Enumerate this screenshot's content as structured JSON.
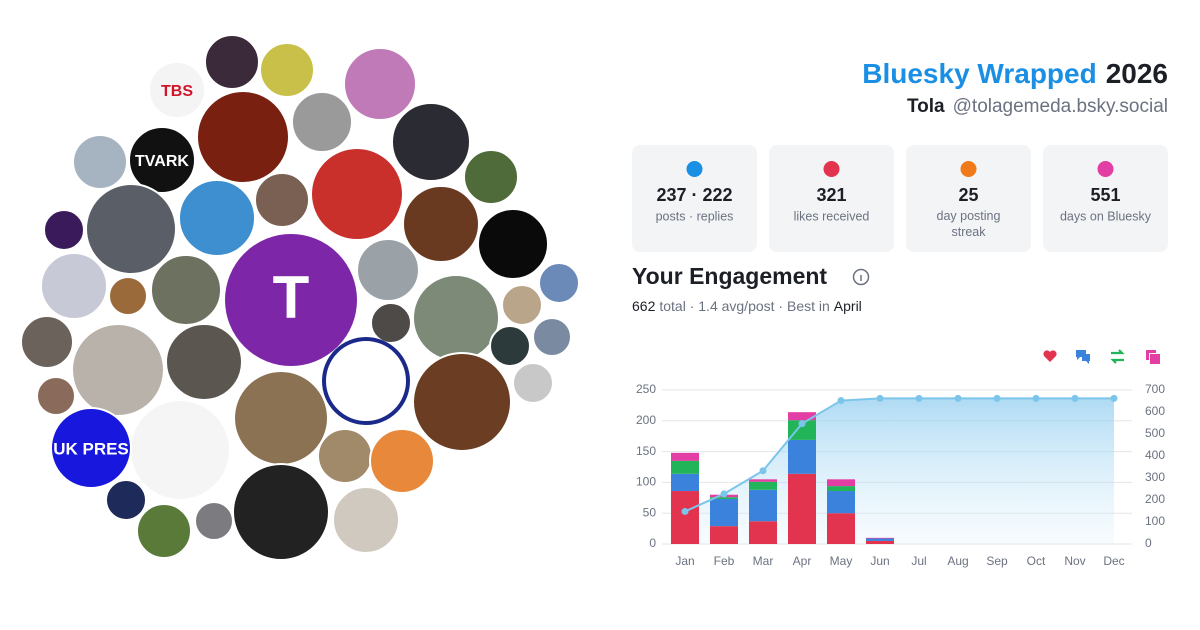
{
  "header": {
    "title": "Bluesky Wrapped",
    "year": "2026",
    "name": "Tola",
    "handle": "@tolagemeda.bsky.social"
  },
  "avatars": {
    "labels": [
      "T",
      "TBS",
      "TVARK",
      "UK PRES"
    ]
  },
  "stats": [
    {
      "value": "237 · 222",
      "label": "posts · replies"
    },
    {
      "value": "321",
      "label": "likes received"
    },
    {
      "value": "25",
      "label": "day posting streak"
    },
    {
      "value": "551",
      "label": "days on Bluesky"
    }
  ],
  "engagement": {
    "heading": "Your Engagement",
    "total": "662",
    "summary": "total · 1.4 avg/post · Best in",
    "best": "April"
  },
  "chart_data": {
    "type": "bar",
    "stacked": true,
    "grid": true,
    "categories": [
      "Jan",
      "Feb",
      "Mar",
      "Apr",
      "May",
      "Jun",
      "Jul",
      "Aug",
      "Sep",
      "Oct",
      "Nov",
      "Dec"
    ],
    "series": [
      {
        "color": "#e3344f",
        "values": [
          86,
          29,
          37,
          114,
          50,
          5,
          0,
          0,
          0,
          0,
          0,
          0
        ]
      },
      {
        "color": "#3b82dc",
        "values": [
          28,
          44,
          51,
          55,
          36,
          4,
          0,
          0,
          0,
          0,
          0,
          0
        ]
      },
      {
        "color": "#22b458",
        "values": [
          21,
          3,
          13,
          32,
          8,
          0,
          0,
          0,
          0,
          0,
          0,
          0
        ]
      },
      {
        "color": "#e23ea3",
        "values": [
          13,
          4,
          4,
          13,
          11,
          1,
          0,
          0,
          0,
          0,
          0,
          0
        ]
      },
      {
        "type": "line",
        "axis": "y2",
        "color": "#7cc5ea",
        "values": [
          148,
          228,
          333,
          547,
          652,
          662,
          662,
          662,
          662,
          662,
          662,
          662
        ]
      }
    ],
    "ylim": [
      0,
      250
    ],
    "yticks": [
      0,
      50,
      100,
      150,
      200,
      250
    ],
    "y2lim": [
      0,
      700
    ],
    "y2ticks": [
      0,
      100,
      200,
      300,
      400,
      500,
      600,
      700
    ]
  }
}
